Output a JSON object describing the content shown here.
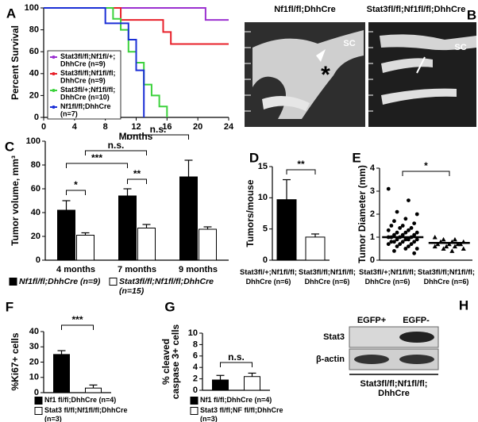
{
  "chart_data": [
    {
      "letter": "A",
      "type": "line",
      "y_label": "Percent Survival",
      "x_label": "Months",
      "xlim": [
        0,
        24
      ],
      "xticks": [
        0,
        4,
        8,
        12,
        16,
        20,
        24
      ],
      "ylim": [
        0,
        100
      ],
      "yticks": [
        0,
        20,
        40,
        60,
        80,
        100
      ],
      "series": [
        {
          "name": "Stat3fl/fl;Nf1fl/+; DhhCre (n=9)",
          "color": "#9b30d0",
          "x": [
            0,
            21,
            21,
            24
          ],
          "values": [
            100,
            100,
            89,
            89
          ]
        },
        {
          "name": "Stat3fl/fl;Nf1fl/fl; DhhCre (n=9)",
          "color": "#e8202a",
          "x": [
            0,
            10,
            10,
            15.5,
            15.5,
            16.5,
            16.5,
            24
          ],
          "values": [
            100,
            100,
            89,
            89,
            78,
            78,
            67,
            67
          ]
        },
        {
          "name": "Stat3fl/+;Nf1fl/fl; DhhCre (n=10)",
          "color": "#3cd23c",
          "x": [
            0,
            9,
            9,
            10,
            10,
            11,
            11,
            12,
            12,
            13,
            13,
            14,
            14,
            15,
            15,
            16,
            16
          ],
          "values": [
            100,
            100,
            90,
            90,
            80,
            80,
            60,
            60,
            50,
            50,
            30,
            30,
            20,
            20,
            10,
            10,
            0
          ]
        },
        {
          "name": "Nf1fl/fl;DhhCre (n=7)",
          "color": "#1b2fd6",
          "x": [
            0,
            8,
            8,
            11,
            11,
            12,
            12,
            13,
            13
          ],
          "values": [
            100,
            100,
            86,
            86,
            71,
            71,
            43,
            43,
            0
          ]
        }
      ]
    },
    {
      "letter": "C",
      "type": "bar",
      "y_label": "Tumor volume, mm³",
      "ylim": [
        0,
        100
      ],
      "yticks": [
        0,
        20,
        40,
        60,
        80,
        100
      ],
      "categories": [
        "4 months",
        "7 months",
        "9 months"
      ],
      "series": [
        {
          "name": "Nf1fl/fl;DhhCre (n=9)",
          "color": "#000000",
          "values": [
            42,
            54,
            70
          ],
          "errors": [
            8,
            6,
            14
          ]
        },
        {
          "name": "Stat3fl/fl;Nf1fl/fl;DhhCre (n=15)",
          "color": "#ffffff",
          "values": [
            21,
            27,
            26
          ],
          "errors": [
            2,
            3,
            2
          ]
        }
      ],
      "annotations": [
        "n.s.",
        "n.s.",
        "***",
        "**",
        "*"
      ]
    },
    {
      "letter": "D",
      "type": "bar",
      "y_label": "Tumors/mouse",
      "ylim": [
        0,
        15
      ],
      "yticks": [
        0,
        5,
        10,
        15
      ],
      "categories": [
        "Stat3fl/+;Nf1fl/fl; DhhCre (n=6)",
        "Stat3fl/fl;Nf1fl/fl; DhhCre (n=6)"
      ],
      "values": [
        9.7,
        3.7
      ],
      "errors": [
        3.2,
        0.5
      ],
      "colors": [
        "#000000",
        "#ffffff"
      ],
      "annotations": [
        "**"
      ]
    },
    {
      "letter": "E",
      "type": "scatter",
      "y_label": "Tumor Diameter (mm)",
      "ylim": [
        0,
        4
      ],
      "yticks": [
        0,
        1,
        2,
        3,
        4
      ],
      "categories": [
        "Stat3fl/+;Nf1fl/fl; DhhCre (n=6)",
        "Stat3fl/fl;Nf1fl/fl; DhhCre (n=6)"
      ],
      "series": [
        {
          "marker": "circle",
          "color": "#000000",
          "mean": 1.0,
          "values": [
            3.1,
            2.6,
            2.1,
            2.0,
            1.8,
            1.7,
            1.6,
            1.5,
            1.5,
            1.4,
            1.4,
            1.3,
            1.3,
            1.2,
            1.2,
            1.2,
            1.1,
            1.1,
            1.1,
            1.0,
            1.0,
            1.0,
            1.0,
            0.9,
            0.9,
            0.9,
            0.9,
            0.8,
            0.8,
            0.8,
            0.8,
            0.7,
            0.7,
            0.7,
            0.6,
            0.6,
            0.5,
            0.5,
            0.4,
            0.3
          ]
        },
        {
          "marker": "triangle",
          "color": "#000000",
          "mean": 0.75,
          "values": [
            1.0,
            0.9,
            0.9,
            0.8,
            0.8,
            0.8,
            0.7,
            0.7,
            0.7,
            0.7,
            0.6,
            0.6,
            0.6,
            0.5,
            0.5,
            0.4
          ]
        }
      ],
      "annotations": [
        "*"
      ]
    },
    {
      "letter": "F",
      "type": "bar",
      "y_label": "%Ki67+ cells",
      "ylim": [
        0,
        40
      ],
      "yticks": [
        0,
        10,
        20,
        30,
        40
      ],
      "series": [
        {
          "name": "Nf1 fl/fl;DhhCre (n=4)",
          "color": "#000000",
          "values": [
            25
          ],
          "errors": [
            2.5
          ]
        },
        {
          "name": "Stat3 fl/fl;Nf1fl/fl;DhhCre (n=3)",
          "color": "#ffffff",
          "values": [
            3
          ],
          "errors": [
            2
          ]
        }
      ],
      "annotations": [
        "***"
      ]
    },
    {
      "letter": "G",
      "type": "bar",
      "y_label": "% cleaved caspase 3+ cells",
      "ylim": [
        0,
        10
      ],
      "yticks": [
        0,
        2,
        4,
        6,
        8,
        10
      ],
      "series": [
        {
          "name": "Nf1 fl/fl;DhhCre (n=4)",
          "color": "#000000",
          "values": [
            1.8
          ],
          "errors": [
            0.8
          ]
        },
        {
          "name": "Stat3 fl/fl;NF fl/fl;DhhCre (n=3)",
          "color": "#ffffff",
          "values": [
            2.4
          ],
          "errors": [
            0.6
          ]
        }
      ],
      "annotations": [
        "n.s."
      ]
    }
  ],
  "images": [
    {
      "letter": "B",
      "labels": [
        "Nf1fl/fl;DhhCre",
        "Stat3fl/fl;Nf1fl/fl;DhhCre"
      ],
      "annotations": [
        "SC",
        "*",
        "SC"
      ]
    },
    {
      "letter": "H",
      "lanes": [
        "EGFP+",
        "EGFP-"
      ],
      "rows": [
        "Stat3",
        "β-actin"
      ],
      "genotype": "Stat3fl/fl;Nf1fl/fl; DhhCre"
    }
  ]
}
